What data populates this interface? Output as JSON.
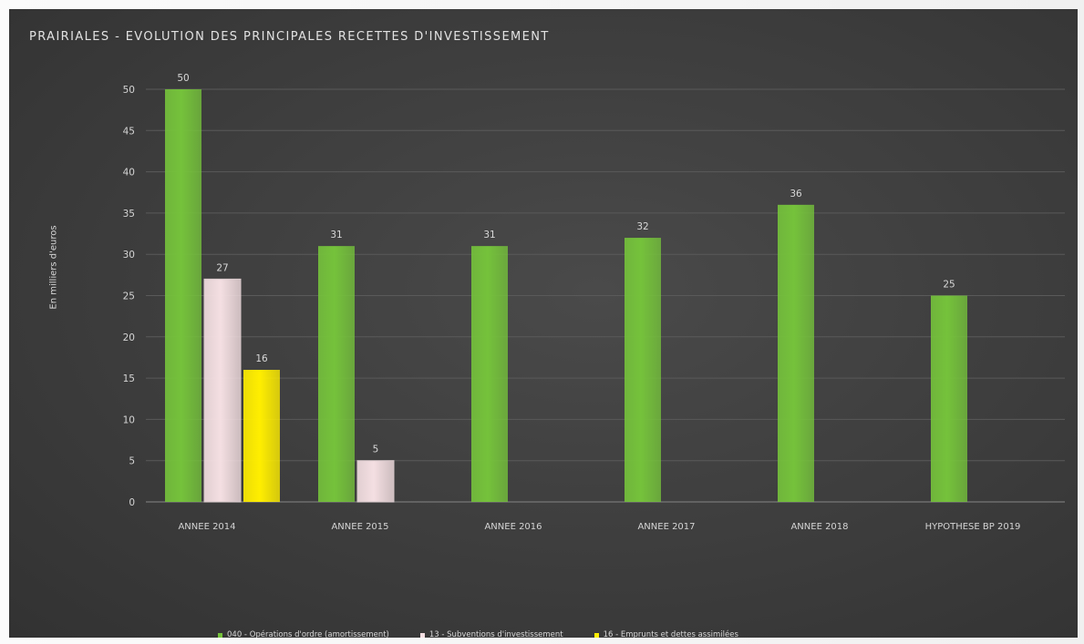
{
  "chart_data": {
    "type": "bar",
    "title": "PRAIRIALES - EVOLUTION DES PRINCIPALES RECETTES D'INVESTISSEMENT",
    "ylabel": "En milliers d'euros",
    "ylim": [
      0,
      50
    ],
    "yticks": [
      0,
      5,
      10,
      15,
      20,
      25,
      30,
      35,
      40,
      45,
      50
    ],
    "categories": [
      "ANNEE 2014",
      "ANNEE 2015",
      "ANNEE 2016",
      "ANNEE 2017",
      "ANNEE 2018",
      "HYPOTHESE BP 2019"
    ],
    "series": [
      {
        "name": "040 - Opérations d'ordre (amortissement)",
        "color": "#75c23b",
        "values": [
          50,
          31,
          31,
          32,
          36,
          25
        ]
      },
      {
        "name": "13 - Subventions d'investissement",
        "color": "#f4dfe2",
        "values": [
          27,
          5,
          null,
          null,
          null,
          null
        ]
      },
      {
        "name": "16 - Emprunts et dettes assimilées",
        "color": "#ffee00",
        "values": [
          16,
          null,
          null,
          null,
          null,
          null
        ]
      }
    ],
    "grid": true,
    "legend_position": "bottom"
  }
}
